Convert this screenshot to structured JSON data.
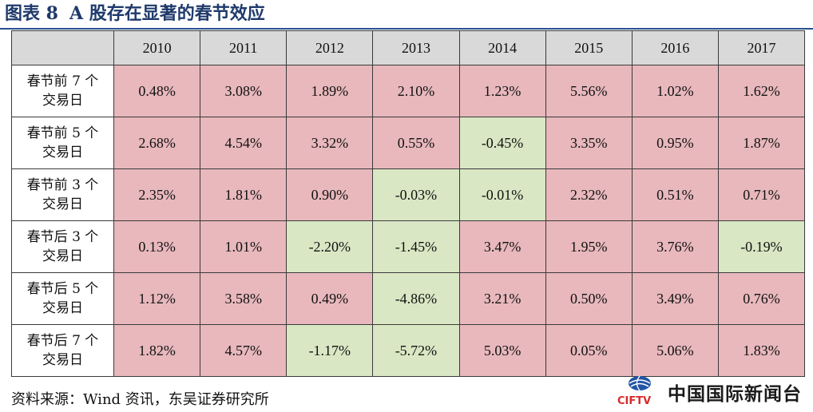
{
  "header": {
    "figure_label": "图表 8",
    "title": "A 股存在显著的春节效应"
  },
  "table": {
    "columns": [
      "2010",
      "2011",
      "2012",
      "2013",
      "2014",
      "2015",
      "2016",
      "2017"
    ],
    "rows": [
      {
        "label_line1": "春节前 7 个",
        "label_line2": "交易日",
        "values": [
          "0.48%",
          "3.08%",
          "1.89%",
          "2.10%",
          "1.23%",
          "5.56%",
          "1.02%",
          "1.62%"
        ]
      },
      {
        "label_line1": "春节前 5 个",
        "label_line2": "交易日",
        "values": [
          "2.68%",
          "4.54%",
          "3.32%",
          "0.55%",
          "-0.45%",
          "3.35%",
          "0.95%",
          "1.87%"
        ]
      },
      {
        "label_line1": "春节前 3 个",
        "label_line2": "交易日",
        "values": [
          "2.35%",
          "1.81%",
          "0.90%",
          "-0.03%",
          "-0.01%",
          "2.32%",
          "0.51%",
          "0.71%"
        ]
      },
      {
        "label_line1": "春节后 3 个",
        "label_line2": "交易日",
        "values": [
          "0.13%",
          "1.01%",
          "-2.20%",
          "-1.45%",
          "3.47%",
          "1.95%",
          "3.76%",
          "-0.19%"
        ]
      },
      {
        "label_line1": "春节后 5 个",
        "label_line2": "交易日",
        "values": [
          "1.12%",
          "3.58%",
          "0.49%",
          "-4.86%",
          "3.21%",
          "0.50%",
          "3.49%",
          "0.76%"
        ]
      },
      {
        "label_line1": "春节后 7 个",
        "label_line2": "交易日",
        "values": [
          "1.82%",
          "4.57%",
          "-1.17%",
          "-5.72%",
          "5.03%",
          "0.05%",
          "5.06%",
          "1.83%"
        ]
      }
    ]
  },
  "footer": {
    "source": "资料来源：Wind 资讯，东吴证券研究所"
  },
  "watermark": {
    "logo_text": "CIFTV",
    "name": "中国国际新闻台"
  },
  "colors": {
    "title": "#1f3a6b",
    "header_fill": "#d9d9d9",
    "positive_fill": "#e8b8bc",
    "negative_fill": "#d9e7c4",
    "logo_blue": "#2255a4",
    "logo_red": "#d62b2b"
  }
}
